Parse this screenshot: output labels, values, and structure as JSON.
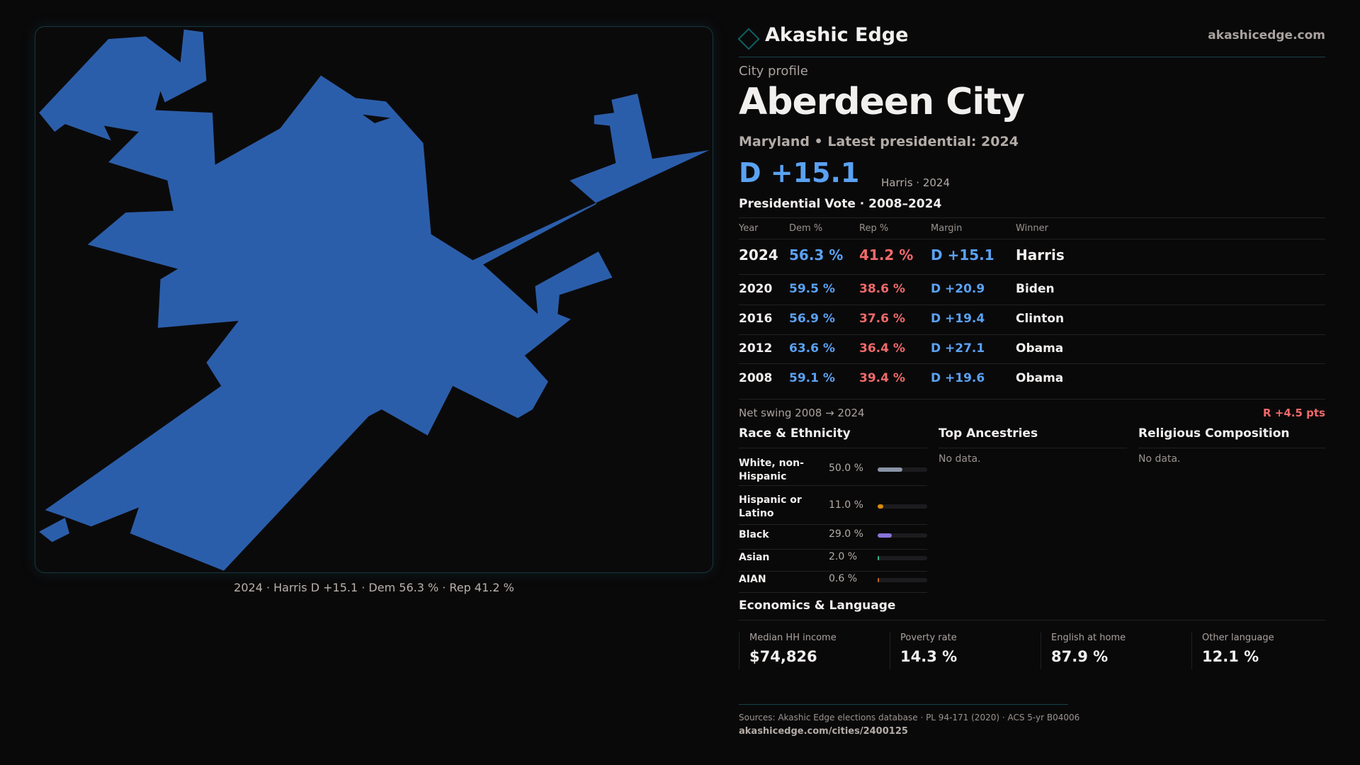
{
  "brand": {
    "name": "Akashic Edge",
    "site": "akashicedge.com"
  },
  "profile": {
    "kicker": "City profile",
    "title": "Aberdeen City",
    "subtitle": "Maryland • Latest presidential: 2024",
    "margin": "D +15.1",
    "margin_sub": "Harris · 2024"
  },
  "map": {
    "caption": "2024 · Harris D +15.1 · Dem 56.3 % · Rep 41.2 %",
    "fill_color": "#2b5eaa"
  },
  "votes": {
    "title": "Presidential Vote · 2008–2024",
    "headers": [
      "Year",
      "Dem %",
      "Rep %",
      "Margin",
      "Winner"
    ],
    "rows": [
      {
        "year": "2024",
        "dem": "56.3 %",
        "rep": "41.2 %",
        "margin": "D +15.1",
        "winner": "Harris"
      },
      {
        "year": "2020",
        "dem": "59.5 %",
        "rep": "38.6 %",
        "margin": "D +20.9",
        "winner": "Biden"
      },
      {
        "year": "2016",
        "dem": "56.9 %",
        "rep": "37.6 %",
        "margin": "D +19.4",
        "winner": "Clinton"
      },
      {
        "year": "2012",
        "dem": "63.6 %",
        "rep": "36.4 %",
        "margin": "D +27.1",
        "winner": "Obama"
      },
      {
        "year": "2008",
        "dem": "59.1 %",
        "rep": "39.4 %",
        "margin": "D +19.6",
        "winner": "Obama"
      }
    ],
    "swing_label": "Net swing 2008 → 2024",
    "swing_value": "R +4.5 pts"
  },
  "race": {
    "title": "Race & Ethnicity",
    "rows": [
      {
        "label": "White, non-Hispanic",
        "value": "50.0 %",
        "pct": 50,
        "color": "#8a94a6"
      },
      {
        "label": "Hispanic or Latino",
        "value": "11.0 %",
        "pct": 11,
        "color": "#d88a0c"
      },
      {
        "label": "Black",
        "value": "29.0 %",
        "pct": 29,
        "color": "#8a72d8"
      },
      {
        "label": "Asian",
        "value": "2.0 %",
        "pct": 2,
        "color": "#2fb58a"
      },
      {
        "label": "AIAN",
        "value": "0.6 %",
        "pct": 0.6,
        "color": "#c2661c"
      }
    ]
  },
  "ancestries": {
    "title": "Top Ancestries",
    "empty": "No data."
  },
  "religion": {
    "title": "Religious Composition",
    "empty": "No data."
  },
  "econ": {
    "title": "Economics & Language",
    "stats": [
      {
        "label": "Median HH income",
        "value": "$74,826"
      },
      {
        "label": "Poverty rate",
        "value": "14.3 %"
      },
      {
        "label": "English at home",
        "value": "87.9 %"
      },
      {
        "label": "Other language",
        "value": "12.1 %"
      }
    ]
  },
  "footer": {
    "sources": "Sources: Akashic Edge elections database · PL 94-171 (2020) · ACS 5-yr B04006",
    "url": "akashicedge.com/cities/2400125"
  }
}
